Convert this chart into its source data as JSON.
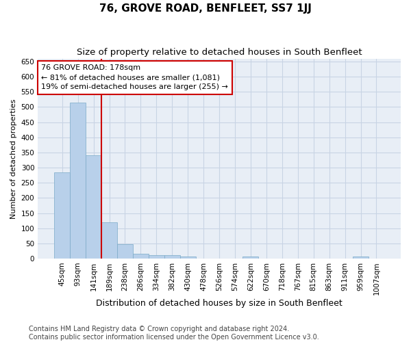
{
  "title": "76, GROVE ROAD, BENFLEET, SS7 1JJ",
  "subtitle": "Size of property relative to detached houses in South Benfleet",
  "xlabel": "Distribution of detached houses by size in South Benfleet",
  "ylabel": "Number of detached properties",
  "bar_labels": [
    "45sqm",
    "93sqm",
    "141sqm",
    "189sqm",
    "238sqm",
    "286sqm",
    "334sqm",
    "382sqm",
    "430sqm",
    "478sqm",
    "526sqm",
    "574sqm",
    "622sqm",
    "670sqm",
    "718sqm",
    "767sqm",
    "815sqm",
    "863sqm",
    "911sqm",
    "959sqm",
    "1007sqm"
  ],
  "bar_heights": [
    285,
    515,
    340,
    120,
    48,
    17,
    12,
    12,
    8,
    0,
    0,
    0,
    7,
    0,
    0,
    0,
    0,
    0,
    0,
    7,
    0
  ],
  "bar_color": "#b8d0ea",
  "bar_edge_color": "#7aaac8",
  "vline_x": 2.5,
  "vline_color": "#cc0000",
  "annotation_text": "76 GROVE ROAD: 178sqm\n← 81% of detached houses are smaller (1,081)\n19% of semi-detached houses are larger (255) →",
  "annotation_box_color": "#ffffff",
  "annotation_box_edge": "#cc0000",
  "ylim": [
    0,
    660
  ],
  "yticks": [
    0,
    50,
    100,
    150,
    200,
    250,
    300,
    350,
    400,
    450,
    500,
    550,
    600,
    650
  ],
  "grid_color": "#c8d4e4",
  "background_color": "#e8eef6",
  "footer_text": "Contains HM Land Registry data © Crown copyright and database right 2024.\nContains public sector information licensed under the Open Government Licence v3.0.",
  "title_fontsize": 11,
  "subtitle_fontsize": 9.5,
  "xlabel_fontsize": 9,
  "ylabel_fontsize": 8,
  "tick_fontsize": 7.5,
  "annotation_fontsize": 8,
  "footer_fontsize": 7
}
